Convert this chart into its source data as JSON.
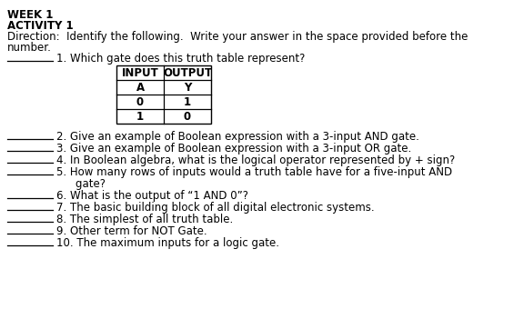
{
  "title1": "WEEK 1",
  "title2": "ACTIVITY 1",
  "direction_line1": "Direction:  Identify the following.  Write your answer in the space provided before the",
  "direction_line2": "number.",
  "questions": [
    "1. Which gate does this truth table represent?",
    "2. Give an example of Boolean expression with a 3-input AND gate.",
    "3. Give an example of Boolean expression with a 3-input OR gate.",
    "4. In Boolean algebra, what is the logical operator represented by + sign?",
    "5. How many rows of inputs would a truth table have for a five-input AND",
    "    gate?",
    "6. What is the output of “1 AND 0”?",
    "7. The basic building block of all digital electronic systems.",
    "8. The simplest of all truth table.",
    "9. Other term for NOT Gate.",
    "10. The maximum inputs for a logic gate."
  ],
  "table_rows": [
    [
      "0",
      "1"
    ],
    [
      "1",
      "0"
    ]
  ],
  "bg_color": "#ffffff",
  "text_color": "#000000",
  "font_size": 8.5,
  "bold_font_size": 8.5,
  "underline_color": "#000000"
}
